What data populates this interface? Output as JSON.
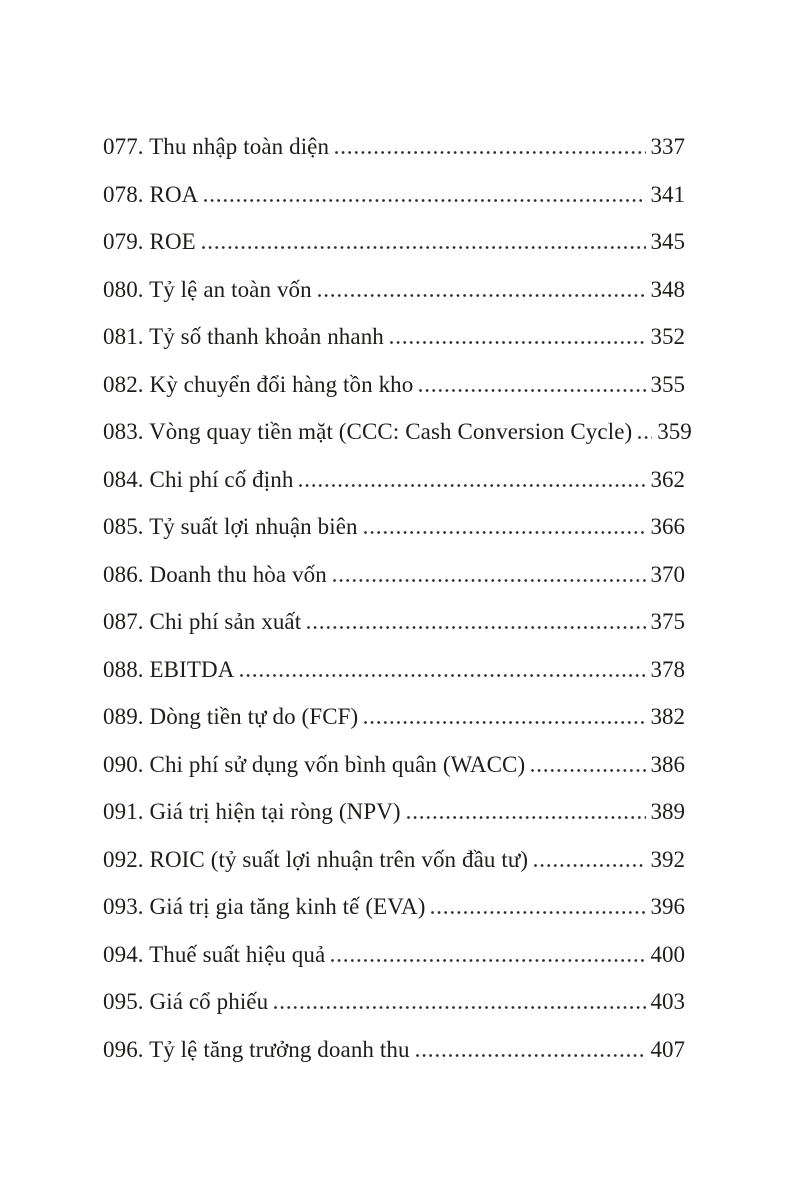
{
  "colors": {
    "page_background": "#ffffff",
    "text": "#1d1d1b",
    "dot_leader": "#2a2a28"
  },
  "toc": {
    "entries": [
      {
        "label": "077. Thu nhập toàn diện",
        "page": "337"
      },
      {
        "label": "078. ROA",
        "page": "341"
      },
      {
        "label": "079. ROE",
        "page": "345"
      },
      {
        "label": "080. Tỷ lệ an toàn vốn",
        "page": "348"
      },
      {
        "label": "081. Tỷ số thanh khoản nhanh",
        "page": "352"
      },
      {
        "label": "082. Kỳ chuyển đổi hàng tồn kho",
        "page": "355"
      },
      {
        "label": "083. Vòng quay tiền mặt (CCC: Cash Conversion Cycle)",
        "page": "359"
      },
      {
        "label": "084. Chi phí cố định",
        "page": "362"
      },
      {
        "label": "085. Tỷ suất lợi nhuận biên",
        "page": "366"
      },
      {
        "label": "086. Doanh thu hòa vốn",
        "page": "370"
      },
      {
        "label": "087. Chi phí sản xuất",
        "page": "375"
      },
      {
        "label": "088. EBITDA",
        "page": "378"
      },
      {
        "label": "089. Dòng tiền tự do (FCF)",
        "page": "382"
      },
      {
        "label": "090. Chi phí sử dụng vốn bình quân (WACC)",
        "page": "386"
      },
      {
        "label": "091. Giá trị hiện tại ròng (NPV)",
        "page": "389"
      },
      {
        "label": "092. ROIC (tỷ suất lợi nhuận trên vốn đầu tư)",
        "page": "392"
      },
      {
        "label": "093. Giá trị gia tăng kinh tế (EVA)",
        "page": "396"
      },
      {
        "label": "094. Thuế suất hiệu quả",
        "page": "400"
      },
      {
        "label": "095. Giá cổ phiếu",
        "page": "403"
      },
      {
        "label": "096. Tỷ lệ tăng trưởng doanh thu",
        "page": "407"
      }
    ]
  }
}
